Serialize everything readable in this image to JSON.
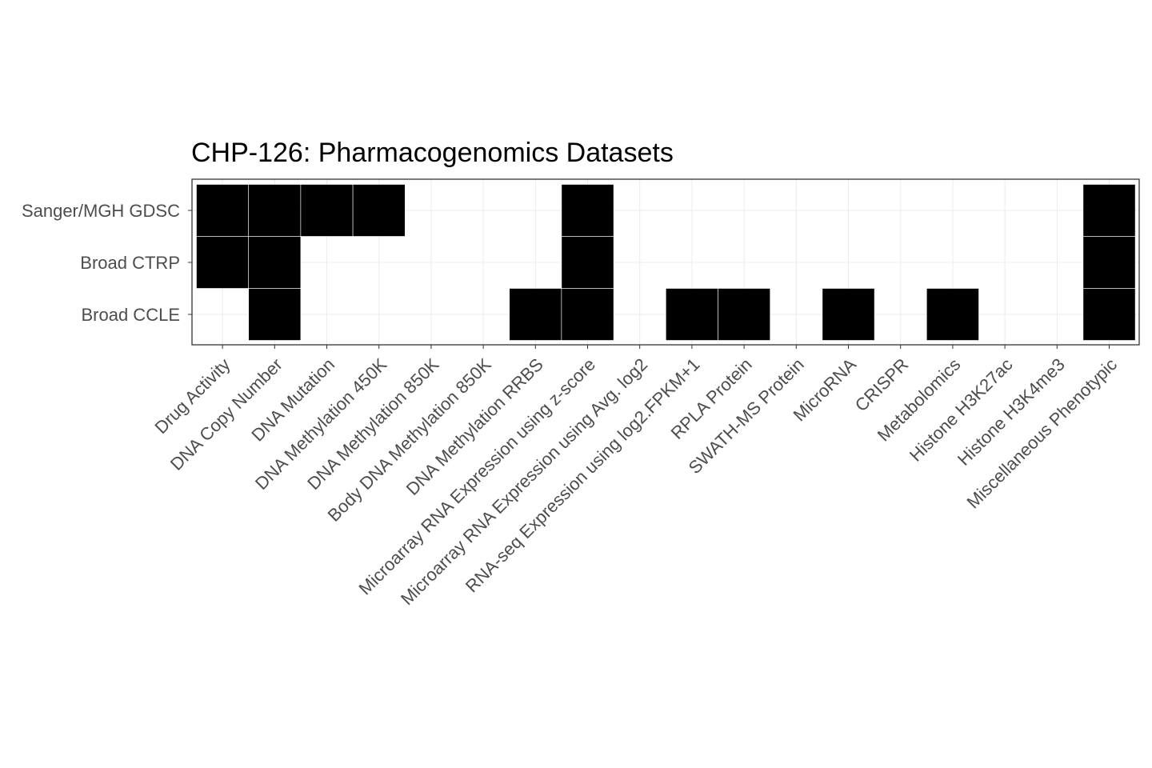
{
  "chart_data": {
    "type": "heatmap",
    "title": "CHP-126: Pharmacogenomics Datasets",
    "xlabel": "",
    "ylabel": "",
    "x": [
      "Drug Activity",
      "DNA Copy Number",
      "DNA Mutation",
      "DNA Methylation 450K",
      "DNA Methylation 850K",
      "Body DNA Methylation 850K",
      "DNA Methylation RRBS",
      "Microarray RNA Expression using z-score",
      "Microarray RNA Expression using Avg. log2",
      "RNA-seq Expression using log2.FPKM+1",
      "RPLA Protein",
      "SWATH-MS Protein",
      "MicroRNA",
      "CRISPR",
      "Metabolomics",
      "Histone H3K27ac",
      "Histone H3K4me3",
      "Miscellaneous Phenotypic"
    ],
    "y": [
      "Sanger/MGH GDSC",
      "Broad CTRP",
      "Broad CCLE"
    ],
    "values": [
      [
        1,
        1,
        1,
        1,
        0,
        0,
        0,
        1,
        0,
        0,
        0,
        0,
        0,
        0,
        0,
        0,
        0,
        1
      ],
      [
        1,
        1,
        0,
        0,
        0,
        0,
        0,
        1,
        0,
        0,
        0,
        0,
        0,
        0,
        0,
        0,
        0,
        1
      ],
      [
        0,
        1,
        0,
        0,
        0,
        0,
        1,
        1,
        0,
        1,
        1,
        0,
        1,
        0,
        1,
        0,
        0,
        1
      ]
    ],
    "fill_color": "#000000",
    "empty_color": "#ffffff",
    "grid": true,
    "legend": "none"
  }
}
